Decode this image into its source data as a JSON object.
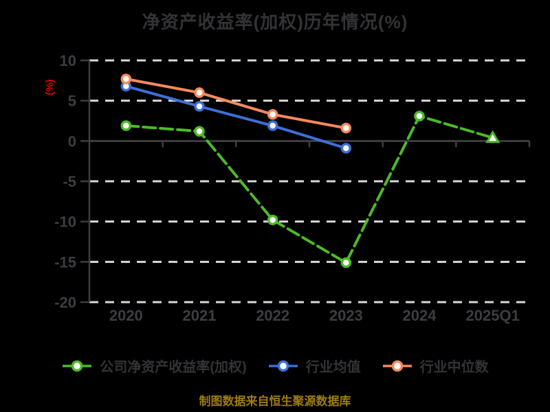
{
  "title": "净资产收益率(加权)历年情况(%)",
  "footer": "制图数据来自恒生聚源数据库",
  "colors": {
    "background": "#000000",
    "title_text": "#333336",
    "axis_line": "#3e3e42",
    "tick_label": "#3d3d41",
    "gridline": "#d9d9d9",
    "y_unit_label": "#e60000",
    "footer_text": "#9c7c12",
    "marker_fill": "#ffffff"
  },
  "yaxis": {
    "label": "(%)",
    "ticks": [
      10,
      5,
      0,
      -5,
      -10,
      -15,
      -20
    ],
    "max": 10,
    "min": -20
  },
  "chart_data": {
    "type": "line",
    "title": "净资产收益率(加权)历年情况(%)",
    "categories": [
      "2020",
      "2021",
      "2022",
      "2023",
      "2024",
      "2025Q1"
    ],
    "series": [
      {
        "name": "公司净资产收益率(加权)",
        "color": "#4cbb27",
        "values": [
          1.9,
          1.2,
          -9.8,
          -15.1,
          3.1,
          0.4
        ],
        "line_style": "dashed",
        "marker": "circle",
        "last_marker": "triangle"
      },
      {
        "name": "行业均值",
        "color": "#3d6fd8",
        "values": [
          6.8,
          4.3,
          1.9,
          -0.9,
          null,
          null
        ],
        "line_style": "solid",
        "marker": "circle"
      },
      {
        "name": "行业中位数",
        "color": "#f8895e",
        "values": [
          7.7,
          6.0,
          3.3,
          1.6,
          null,
          null
        ],
        "line_style": "solid",
        "marker": "circle"
      }
    ],
    "ylim": [
      -20,
      10
    ],
    "ylabel": "(%)",
    "grid": "horizontal-dashed, solid zero line",
    "legend_position": "bottom"
  }
}
